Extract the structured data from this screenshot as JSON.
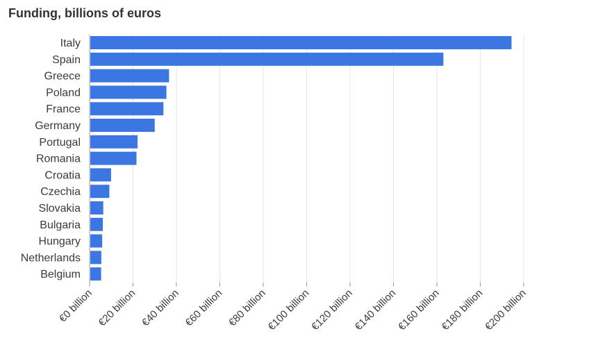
{
  "chart_data": {
    "type": "bar",
    "orientation": "horizontal",
    "title": "Funding, billions of euros",
    "xlabel": "",
    "ylabel": "",
    "categories": [
      "Italy",
      "Spain",
      "Greece",
      "Poland",
      "France",
      "Germany",
      "Portugal",
      "Romania",
      "Croatia",
      "Czechia",
      "Slovakia",
      "Bulgaria",
      "Hungary",
      "Netherlands",
      "Belgium"
    ],
    "values": [
      194.4,
      163.0,
      36.6,
      35.4,
      34.0,
      30.0,
      22.1,
      21.6,
      9.9,
      9.1,
      6.3,
      6.1,
      5.8,
      5.4,
      5.3
    ],
    "xlim": [
      0,
      200
    ],
    "x_ticks": [
      0,
      20,
      40,
      60,
      80,
      100,
      120,
      140,
      160,
      180,
      200
    ],
    "x_tick_labels": [
      "€0 billion",
      "€20 billion",
      "€40 billion",
      "€60 billion",
      "€80 billion",
      "€100 billion",
      "€120 billion",
      "€140 billion",
      "€160 billion",
      "€180 billion",
      "€200 billion"
    ],
    "grid": true,
    "bar_color": "#3b76e3"
  }
}
